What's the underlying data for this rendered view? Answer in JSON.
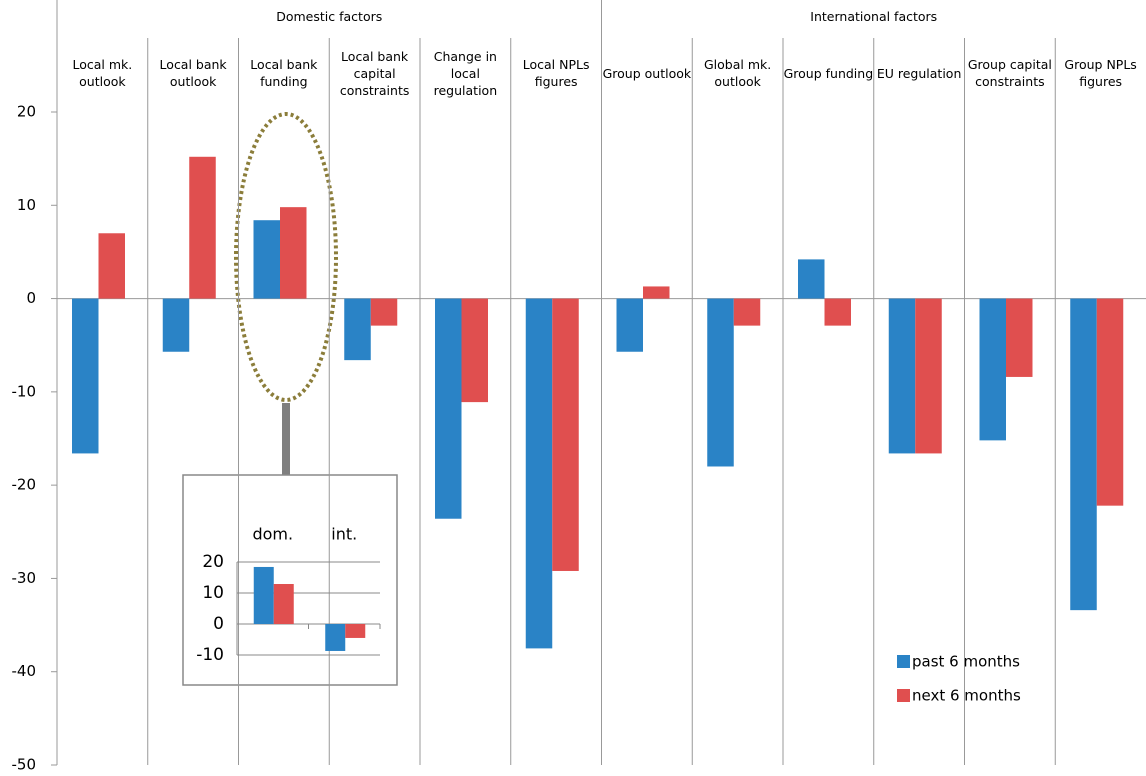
{
  "chart_data": [
    {
      "type": "bar",
      "groups": [
        {
          "name": "Domestic factors",
          "categories": [
            "Local mk. outlook",
            "Local bank outlook",
            "Local bank funding",
            "Local bank capital constraints",
            "Change in local regulation",
            "Local NPLs figures"
          ]
        },
        {
          "name": "International factors",
          "categories": [
            "Group outlook",
            "Global mk. outlook",
            "Group funding",
            "EU regulation",
            "Group capital constraints",
            "Group NPLs figures"
          ]
        }
      ],
      "series": [
        {
          "name": "past 6 months",
          "color": "#2a83c6",
          "values": [
            -16.6,
            -5.7,
            8.4,
            -6.6,
            -23.6,
            -37.5,
            -5.7,
            -18.0,
            4.2,
            -16.6,
            -15.2,
            -33.4
          ]
        },
        {
          "name": "next 6 months",
          "color": "#e04f4f",
          "values": [
            7.0,
            15.2,
            9.8,
            -2.9,
            -11.1,
            -29.2,
            1.3,
            -2.9,
            -2.9,
            -16.6,
            -8.4,
            -22.2
          ]
        }
      ],
      "ylim": [
        -50,
        20
      ],
      "yticks": [
        -50,
        -40,
        -30,
        -20,
        -10,
        0,
        10,
        20
      ],
      "legend": "bottom-right"
    },
    {
      "type": "bar",
      "categories": [
        "dom.",
        "int."
      ],
      "series": [
        {
          "color": "#2a83c6",
          "values": [
            18.4,
            -8.7
          ]
        },
        {
          "color": "#e04f4f",
          "values": [
            12.9,
            -4.5
          ]
        }
      ],
      "ylim": [
        -10,
        20
      ],
      "yticks": [
        -10,
        0,
        10,
        20
      ],
      "grid": true
    }
  ]
}
